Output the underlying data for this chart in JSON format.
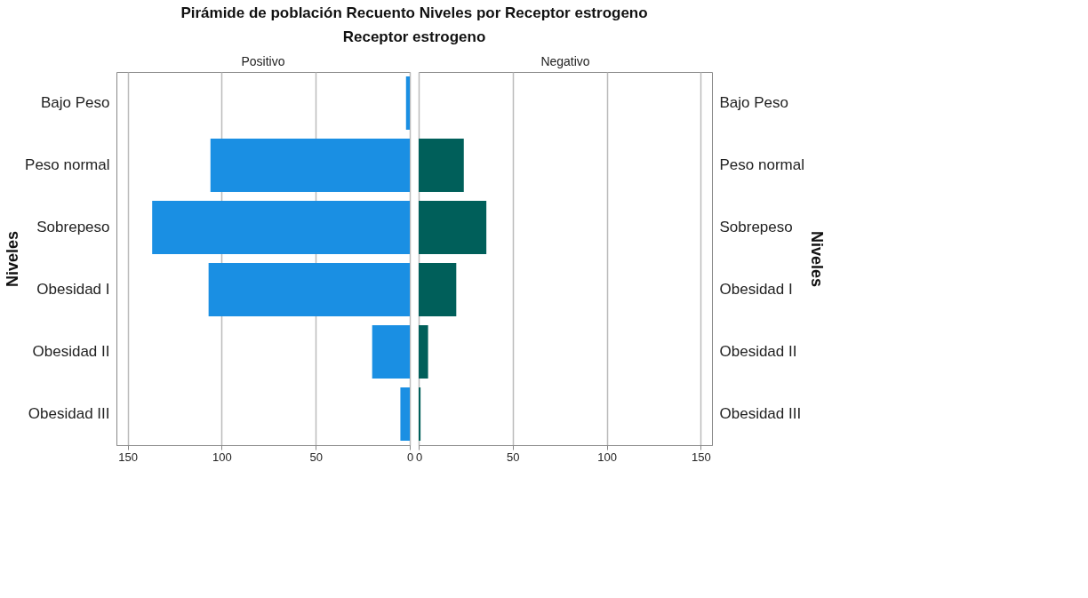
{
  "chart_data": [
    {
      "type": "bar",
      "orientation": "horizontal",
      "title": "Pirámide de población Recuento Niveles  por Receptor estrogeno",
      "subtitle": "Receptor estrogeno",
      "ylabel": "Niveles",
      "categories": [
        "Bajo Peso",
        "Peso normal",
        "Sobrepeso",
        "Obesidad I",
        "Obesidad II",
        "Obesidad III"
      ],
      "series": [
        {
          "name": "Positivo",
          "color": "#1a8fe3",
          "values": [
            2,
            106,
            137,
            107,
            20,
            5
          ]
        }
      ],
      "xlim": [
        156,
        0
      ],
      "xticks": [
        150,
        100,
        50,
        0
      ],
      "grid": "x"
    },
    {
      "type": "bar",
      "orientation": "horizontal",
      "ylabel": "Niveles",
      "categories": [
        "Bajo Peso",
        "Peso normal",
        "Sobrepeso",
        "Obesidad I",
        "Obesidad II",
        "Obesidad III"
      ],
      "series": [
        {
          "name": "Negativo",
          "color": "#005f5a",
          "values": [
            0,
            24,
            36,
            20,
            5,
            1
          ]
        }
      ],
      "xlim": [
        0,
        156
      ],
      "xticks": [
        0,
        50,
        100,
        150
      ],
      "grid": "x"
    }
  ]
}
